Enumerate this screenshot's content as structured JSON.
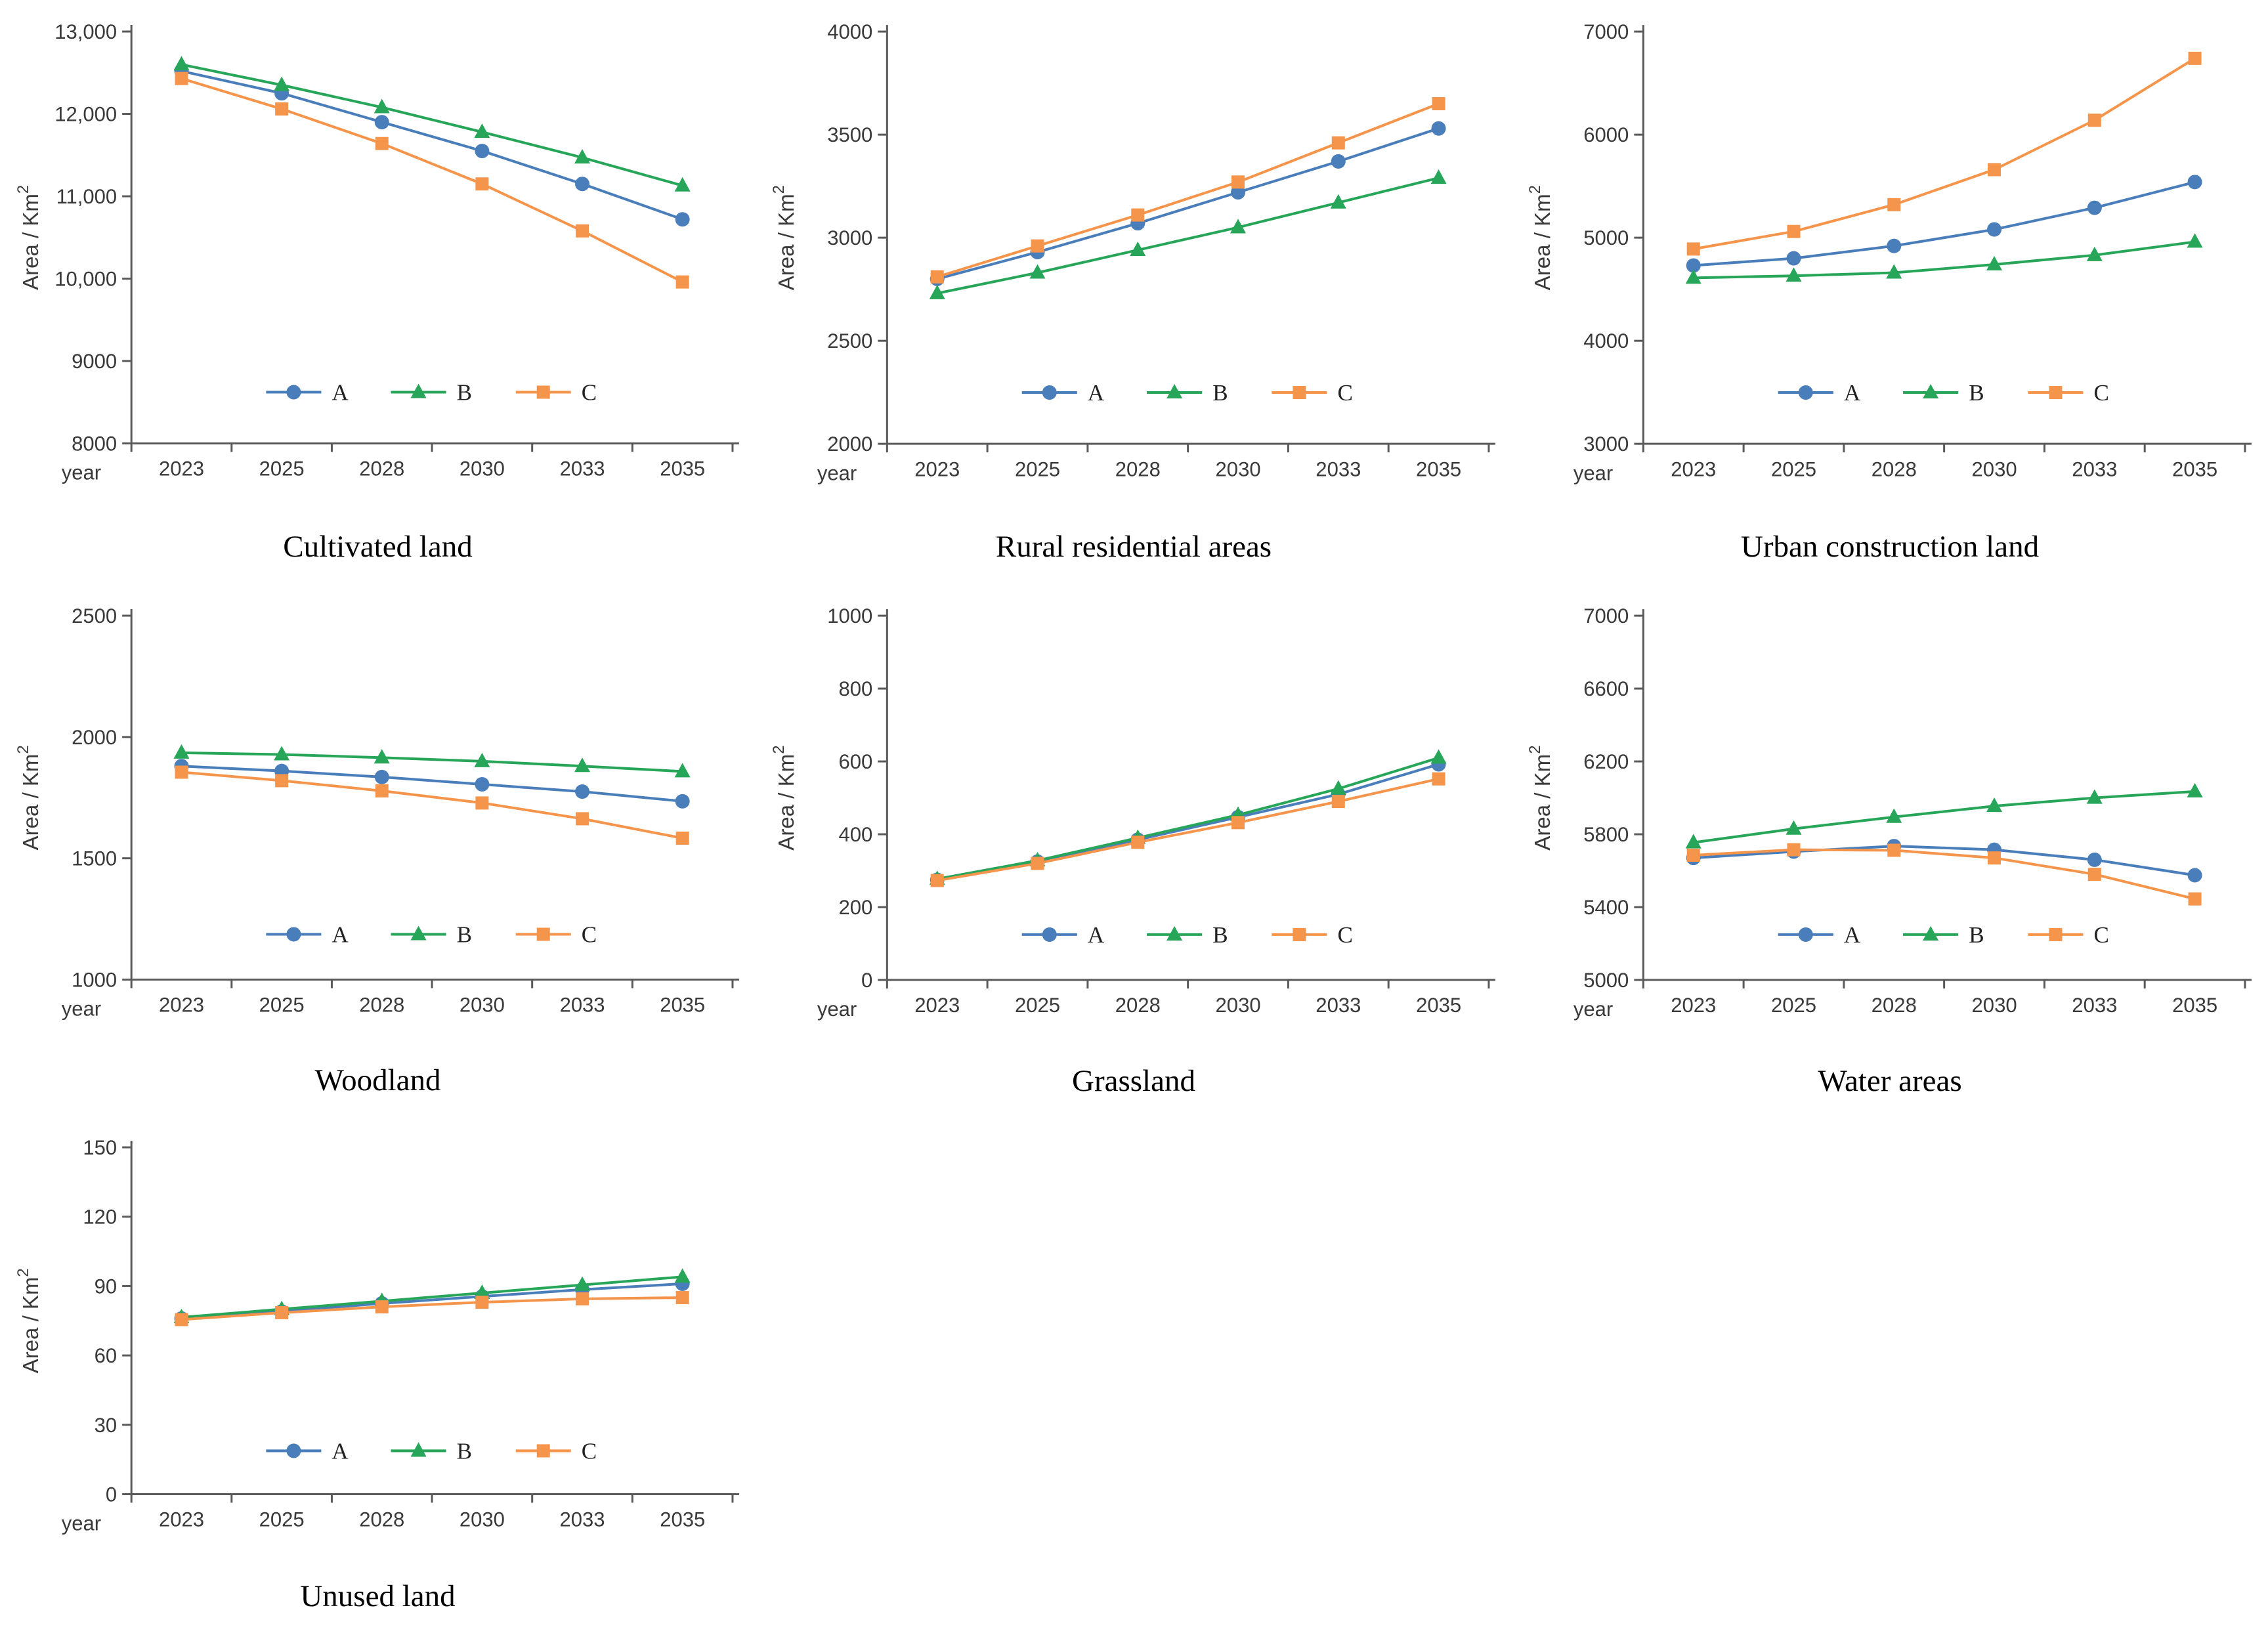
{
  "series_style": [
    {
      "name": "A",
      "color": "#4a7ebb",
      "marker": "circle"
    },
    {
      "name": "B",
      "color": "#27a659",
      "marker": "triangle"
    },
    {
      "name": "C",
      "color": "#f5954c",
      "marker": "square"
    }
  ],
  "chart_data": [
    {
      "type": "line",
      "title": "Cultivated land",
      "xlabel": "year",
      "ylabel": "Area / Km²",
      "x": [
        "2023",
        "2025",
        "2028",
        "2030",
        "2033",
        "2035"
      ],
      "ylim": [
        8000,
        13000
      ],
      "ytick_values": [
        8000,
        9000,
        10000,
        11000,
        12000,
        13000
      ],
      "ytick_labels": [
        "8000",
        "9000",
        "10,000",
        "11,000",
        "12,000",
        "13,000"
      ],
      "grid": false,
      "legend_position": "bottom-inside",
      "legend": [
        "A",
        "B",
        "C"
      ],
      "series": [
        {
          "name": "A",
          "values": [
            12520,
            12250,
            11900,
            11550,
            11150,
            10720
          ]
        },
        {
          "name": "B",
          "values": [
            12600,
            12350,
            12080,
            11780,
            11470,
            11130
          ]
        },
        {
          "name": "C",
          "values": [
            12430,
            12060,
            11640,
            11150,
            10580,
            9960
          ]
        }
      ]
    },
    {
      "type": "line",
      "title": "Rural residential areas",
      "xlabel": "year",
      "ylabel": "Area / Km²",
      "x": [
        "2023",
        "2025",
        "2028",
        "2030",
        "2033",
        "2035"
      ],
      "ylim": [
        2000,
        4000
      ],
      "ytick_values": [
        2000,
        2500,
        3000,
        3500,
        4000
      ],
      "ytick_labels": [
        "2000",
        "2500",
        "3000",
        "3500",
        "4000"
      ],
      "grid": false,
      "legend_position": "bottom-inside",
      "legend": [
        "A",
        "B",
        "C"
      ],
      "series": [
        {
          "name": "A",
          "values": [
            2800,
            2930,
            3070,
            3220,
            3370,
            3530
          ]
        },
        {
          "name": "B",
          "values": [
            2730,
            2830,
            2940,
            3050,
            3170,
            3290
          ]
        },
        {
          "name": "C",
          "values": [
            2810,
            2960,
            3110,
            3270,
            3460,
            3650
          ]
        }
      ]
    },
    {
      "type": "line",
      "title": "Urban construction land",
      "xlabel": "year",
      "ylabel": "Area / Km²",
      "x": [
        "2023",
        "2025",
        "2028",
        "2030",
        "2033",
        "2035"
      ],
      "ylim": [
        3000,
        7000
      ],
      "ytick_values": [
        3000,
        4000,
        5000,
        6000,
        7000
      ],
      "ytick_labels": [
        "3000",
        "4000",
        "5000",
        "6000",
        "7000"
      ],
      "grid": false,
      "legend_position": "bottom-inside",
      "legend": [
        "A",
        "B",
        "C"
      ],
      "series": [
        {
          "name": "A",
          "values": [
            4730,
            4800,
            4920,
            5080,
            5290,
            5540
          ]
        },
        {
          "name": "B",
          "values": [
            4610,
            4630,
            4660,
            4740,
            4830,
            4960
          ]
        },
        {
          "name": "C",
          "values": [
            4890,
            5060,
            5320,
            5660,
            6140,
            6740
          ]
        }
      ]
    },
    {
      "type": "line",
      "title": "Woodland",
      "xlabel": "year",
      "ylabel": "Area / Km²",
      "x": [
        "2023",
        "2025",
        "2028",
        "2030",
        "2033",
        "2035"
      ],
      "ylim": [
        1000,
        2500
      ],
      "ytick_values": [
        1000,
        1500,
        2000,
        2500
      ],
      "ytick_labels": [
        "1000",
        "1500",
        "2000",
        "2500"
      ],
      "grid": false,
      "legend_position": "bottom-inside",
      "legend": [
        "A",
        "B",
        "C"
      ],
      "series": [
        {
          "name": "A",
          "values": [
            1880,
            1860,
            1835,
            1805,
            1775,
            1735
          ]
        },
        {
          "name": "B",
          "values": [
            1935,
            1928,
            1915,
            1900,
            1880,
            1858
          ]
        },
        {
          "name": "C",
          "values": [
            1855,
            1820,
            1778,
            1728,
            1663,
            1583
          ]
        }
      ]
    },
    {
      "type": "line",
      "title": "Grassland",
      "xlabel": "year",
      "ylabel": "Area / Km²",
      "x": [
        "2023",
        "2025",
        "2028",
        "2030",
        "2033",
        "2035"
      ],
      "ylim": [
        0,
        1000
      ],
      "ytick_values": [
        0,
        200,
        400,
        600,
        800,
        1000
      ],
      "ytick_labels": [
        "0",
        "200",
        "400",
        "600",
        "800",
        "1000"
      ],
      "grid": false,
      "legend_position": "bottom-inside",
      "legend": [
        "A",
        "B",
        "C"
      ],
      "series": [
        {
          "name": "A",
          "values": [
            275,
            325,
            385,
            447,
            510,
            592
          ]
        },
        {
          "name": "B",
          "values": [
            277,
            328,
            390,
            453,
            525,
            610
          ]
        },
        {
          "name": "C",
          "values": [
            273,
            320,
            378,
            432,
            490,
            552
          ]
        }
      ]
    },
    {
      "type": "line",
      "title": "Water areas",
      "xlabel": "year",
      "ylabel": "Area / Km²",
      "x": [
        "2023",
        "2025",
        "2028",
        "2030",
        "2033",
        "2035"
      ],
      "ylim": [
        5000,
        7000
      ],
      "ytick_values": [
        5000,
        5400,
        5800,
        6200,
        6600,
        7000
      ],
      "ytick_labels": [
        "5000",
        "5400",
        "5800",
        "6200",
        "6600",
        "7000"
      ],
      "grid": false,
      "legend_position": "bottom-inside",
      "legend": [
        "A",
        "B",
        "C"
      ],
      "series": [
        {
          "name": "A",
          "values": [
            5670,
            5705,
            5735,
            5715,
            5660,
            5575
          ]
        },
        {
          "name": "B",
          "values": [
            5755,
            5830,
            5895,
            5955,
            6000,
            6035
          ]
        },
        {
          "name": "C",
          "values": [
            5685,
            5715,
            5712,
            5670,
            5580,
            5445
          ]
        }
      ]
    },
    {
      "type": "line",
      "title": "Unused land",
      "xlabel": "year",
      "ylabel": "Area / Km²",
      "x": [
        "2023",
        "2025",
        "2028",
        "2030",
        "2033",
        "2035"
      ],
      "ylim": [
        0,
        150
      ],
      "ytick_values": [
        0,
        30,
        60,
        90,
        120,
        150
      ],
      "ytick_labels": [
        "0",
        "30",
        "60",
        "90",
        "120",
        "150"
      ],
      "grid": false,
      "legend_position": "bottom-inside",
      "legend": [
        "A",
        "B",
        "C"
      ],
      "series": [
        {
          "name": "A",
          "values": [
            76,
            79,
            82.5,
            85.5,
            88.5,
            91
          ]
        },
        {
          "name": "B",
          "values": [
            76.5,
            80,
            83.5,
            87,
            90.5,
            94
          ]
        },
        {
          "name": "C",
          "values": [
            75.5,
            78.5,
            81,
            83,
            84.5,
            85
          ]
        }
      ]
    }
  ]
}
